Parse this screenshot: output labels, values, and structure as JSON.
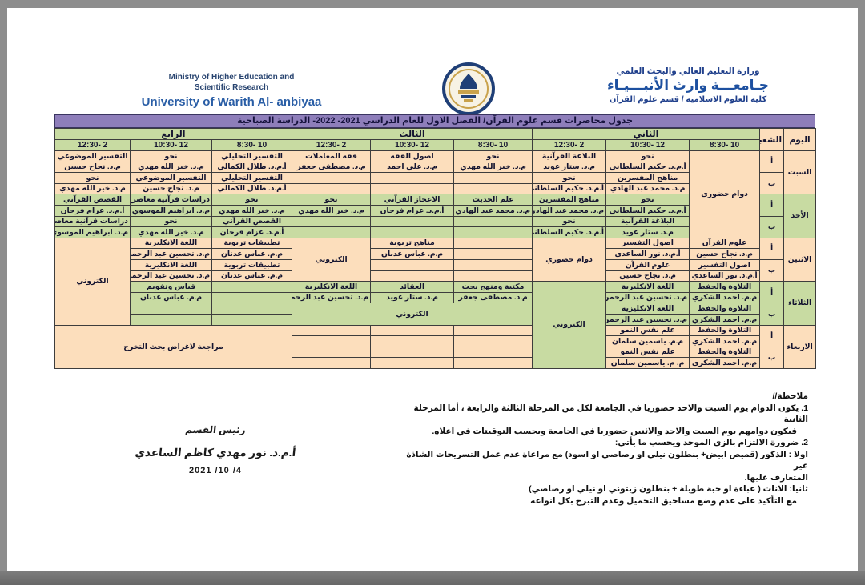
{
  "header": {
    "ministry_line1": "Ministry of Higher Education and",
    "ministry_line2": "Scientific Research",
    "university_en": "University of Warith Al- anbiyaa",
    "ministry_ar": "وزارة التعليم العالي والبحث العلمي",
    "university_ar": "جـامعـــة وارث الأنبـــيـاء",
    "college_ar": "كلية العلوم الاسلامية / قسم علوم القرآن",
    "logo_icon": "university-emblem"
  },
  "title_bar": "جدول محاضرات قسم علوم القرآن/ الفصل الاول للعام الدراسي 2021- 2022- الدراسة الصباحية",
  "colors": {
    "title_purple": "#8e7eba",
    "row_peach": "#fcdebc",
    "row_green": "#c8dba2",
    "border": "#3d3d3d",
    "header_blue_en": "#2a5ea6",
    "header_navy": "#20408c"
  },
  "table": {
    "headers": {
      "day": "اليوم",
      "section": "الشعبة",
      "stages": [
        "الثاني",
        "الثالث",
        "الرابع"
      ],
      "times": [
        "10 -8:30",
        "12 -10:30",
        "2 -12:30"
      ]
    },
    "body_rows": [
      {
        "tone": "p",
        "cells": [
          {
            "t": "السبت",
            "k": "day",
            "rs": 4
          },
          {
            "t": "أ",
            "k": "sec",
            "rs": 2
          },
          {
            "t": "دوام حضوري",
            "k": "mrg",
            "rs": 8
          },
          {
            "t": "نحو",
            "k": "sub"
          },
          {
            "t": "البلاغة القرآنية",
            "k": "sub"
          },
          {
            "t": "نحو",
            "k": "sub"
          },
          {
            "t": "اصول الفقه",
            "k": "sub"
          },
          {
            "t": "فقه المعاملات",
            "k": "sub"
          },
          {
            "t": "التفسير التحليلي",
            "k": "sub"
          },
          {
            "t": "نحو",
            "k": "sub"
          },
          {
            "t": "التفسير الموضوعي",
            "k": "sub"
          }
        ]
      },
      {
        "tone": "p",
        "cells": [
          {
            "t": "أ.م.د. حكيم السلطاني",
            "k": "tch"
          },
          {
            "t": "م.د. ستار عويد",
            "k": "tch"
          },
          {
            "t": "م.د. خير الله مهدي",
            "k": "tch"
          },
          {
            "t": "م.د. علي احمد",
            "k": "tch"
          },
          {
            "t": "م.د. مصطفى جعفر",
            "k": "tch"
          },
          {
            "t": "أ.م.د. طلال الكمالي",
            "k": "tch"
          },
          {
            "t": "م.د. خير الله مهدي",
            "k": "tch"
          },
          {
            "t": "م.د. نجاح حسين",
            "k": "tch"
          }
        ]
      },
      {
        "tone": "p",
        "cells": [
          {
            "t": "ب",
            "k": "sec",
            "rs": 2
          },
          {
            "t": "مناهج المفسرين",
            "k": "sub"
          },
          {
            "t": "نحو",
            "k": "sub"
          },
          {
            "t": "",
            "k": "emp"
          },
          {
            "t": "",
            "k": "emp"
          },
          {
            "t": "",
            "k": "emp"
          },
          {
            "t": "التفسير التحليلي",
            "k": "sub"
          },
          {
            "t": "التفسير الموضوعي",
            "k": "sub"
          },
          {
            "t": "نحو",
            "k": "sub"
          }
        ]
      },
      {
        "tone": "p",
        "cells": [
          {
            "t": "م.د. محمد عبد الهادي",
            "k": "tch"
          },
          {
            "t": "أ.م.د. حكيم السلطاني",
            "k": "tch"
          },
          {
            "t": "",
            "k": "emp"
          },
          {
            "t": "",
            "k": "emp"
          },
          {
            "t": "",
            "k": "emp"
          },
          {
            "t": "أ.م.د. طلال الكمالي",
            "k": "tch"
          },
          {
            "t": "م.د. نجاح حسين",
            "k": "tch"
          },
          {
            "t": "م.د. خير الله مهدي",
            "k": "tch"
          }
        ]
      },
      {
        "tone": "g",
        "cells": [
          {
            "t": "الأحد",
            "k": "day",
            "rs": 4
          },
          {
            "t": "أ",
            "k": "sec",
            "rs": 2
          },
          {
            "t": "نحو",
            "k": "sub"
          },
          {
            "t": "مناهج المفسرين",
            "k": "sub"
          },
          {
            "t": "علم الحديث",
            "k": "sub"
          },
          {
            "t": "الاعجاز القرآني",
            "k": "sub"
          },
          {
            "t": "نحو",
            "k": "sub"
          },
          {
            "t": "نحو",
            "k": "sub"
          },
          {
            "t": "دراسات قرآنية معاصرة",
            "k": "sub"
          },
          {
            "t": "القصص القرآني",
            "k": "sub"
          }
        ]
      },
      {
        "tone": "g",
        "cells": [
          {
            "t": "أ.م.د. حكيم السلطاني",
            "k": "tch"
          },
          {
            "t": "م.د. محمد عبد الهادي",
            "k": "tch"
          },
          {
            "t": "م.د. محمد عبد الهادي",
            "k": "tch"
          },
          {
            "t": "أ.م.د. عزام فرحان",
            "k": "tch"
          },
          {
            "t": "م.د. خير الله مهدي",
            "k": "tch"
          },
          {
            "t": "م.د. خير الله مهدي",
            "k": "tch"
          },
          {
            "t": "م.د. ابراهيم الموسوي",
            "k": "tch"
          },
          {
            "t": "أ.م.د. عزام فرحان",
            "k": "tch"
          }
        ]
      },
      {
        "tone": "g",
        "cells": [
          {
            "t": "ب",
            "k": "sec",
            "rs": 2
          },
          {
            "t": "البلاغة القرآنية",
            "k": "sub"
          },
          {
            "t": "نحو",
            "k": "sub"
          },
          {
            "t": "",
            "k": "emp"
          },
          {
            "t": "",
            "k": "emp"
          },
          {
            "t": "",
            "k": "emp"
          },
          {
            "t": "القصص القرآني",
            "k": "sub"
          },
          {
            "t": "نحو",
            "k": "sub"
          },
          {
            "t": "دراسات قرآنية معاصرة",
            "k": "sub"
          }
        ]
      },
      {
        "tone": "g",
        "cells": [
          {
            "t": "م.د. ستار عويد",
            "k": "tch"
          },
          {
            "t": "أ.م.د. حكيم السلطاني",
            "k": "tch"
          },
          {
            "t": "",
            "k": "emp"
          },
          {
            "t": "",
            "k": "emp"
          },
          {
            "t": "",
            "k": "emp"
          },
          {
            "t": "أ.م.د. عزام فرحان",
            "k": "tch"
          },
          {
            "t": "م.د. خير الله مهدي",
            "k": "tch"
          },
          {
            "t": "م.د. ابراهيم الموسوي",
            "k": "tch"
          }
        ]
      },
      {
        "tone": "p",
        "cells": [
          {
            "t": "الاثنين",
            "k": "day",
            "rs": 4
          },
          {
            "t": "أ",
            "k": "sec",
            "rs": 2
          },
          {
            "t": "علوم القرآن",
            "k": "sub"
          },
          {
            "t": "اصول التفسير",
            "k": "sub"
          },
          {
            "t": "دوام حضوري",
            "k": "mrg",
            "rs": 4
          },
          {
            "t": "",
            "k": "emp"
          },
          {
            "t": "مناهج تربوية",
            "k": "sub"
          },
          {
            "t": "الكتروني",
            "k": "mrg",
            "rs": 4
          },
          {
            "t": "تطبيقات تربوية",
            "k": "sub"
          },
          {
            "t": "اللغة الانكليزية",
            "k": "sub"
          },
          {
            "t": "الكتروني",
            "k": "mrg",
            "rs": 8
          }
        ]
      },
      {
        "tone": "p",
        "cells": [
          {
            "t": "م.د. نجاح حسين",
            "k": "tch"
          },
          {
            "t": "أ.م.د. نور الساعدي",
            "k": "tch"
          },
          {
            "t": "",
            "k": "emp"
          },
          {
            "t": "م.م. عباس عدنان",
            "k": "tch"
          },
          {
            "t": "م.م. عباس عدنان",
            "k": "tch"
          },
          {
            "t": "م.د. تحسين عبد الرحمن",
            "k": "tch"
          }
        ]
      },
      {
        "tone": "p",
        "cells": [
          {
            "t": "ب",
            "k": "sec",
            "rs": 2
          },
          {
            "t": "اصول التفسير",
            "k": "sub"
          },
          {
            "t": "علوم القرآن",
            "k": "sub"
          },
          {
            "t": "",
            "k": "emp"
          },
          {
            "t": "",
            "k": "emp"
          },
          {
            "t": "تطبيقات تربوية",
            "k": "sub"
          },
          {
            "t": "اللغة الانكليزية",
            "k": "sub"
          }
        ]
      },
      {
        "tone": "p",
        "cells": [
          {
            "t": "أ.م.د. نور الساعدي",
            "k": "tch"
          },
          {
            "t": "م.د. نجاح حسين",
            "k": "tch"
          },
          {
            "t": "",
            "k": "emp"
          },
          {
            "t": "",
            "k": "emp"
          },
          {
            "t": "م.م. عباس عدنان",
            "k": "tch"
          },
          {
            "t": "م.د. تحسين عبد الرحمن",
            "k": "tch"
          }
        ]
      },
      {
        "tone": "g",
        "cells": [
          {
            "t": "الثلاثاء",
            "k": "day",
            "rs": 4
          },
          {
            "t": "أ",
            "k": "sec",
            "rs": 2
          },
          {
            "t": "التلاوة والحفظ",
            "k": "sub"
          },
          {
            "t": "اللغة الانكليزية",
            "k": "sub"
          },
          {
            "t": "الكتروني",
            "k": "mrg",
            "rs": 8
          },
          {
            "t": "مكتبة ومنهج بحث",
            "k": "sub"
          },
          {
            "t": "العقائد",
            "k": "sub"
          },
          {
            "t": "اللغة الانكليزية",
            "k": "sub"
          },
          {
            "t": "",
            "k": "emp"
          },
          {
            "t": "قياس وتقويم",
            "k": "sub"
          }
        ]
      },
      {
        "tone": "g",
        "cells": [
          {
            "t": "م.م. احمد الشكري",
            "k": "tch"
          },
          {
            "t": "م.د. تحسين عبد الرحمن",
            "k": "tch"
          },
          {
            "t": "م.د. مصطفى جعفر",
            "k": "tch"
          },
          {
            "t": "م.د. ستار عويد",
            "k": "tch"
          },
          {
            "t": "م.د. تحسين عبد الرحمن",
            "k": "tch"
          },
          {
            "t": "",
            "k": "emp"
          },
          {
            "t": "م.م. عباس عدنان",
            "k": "tch"
          }
        ]
      },
      {
        "tone": "g",
        "cells": [
          {
            "t": "ب",
            "k": "sec",
            "rs": 2
          },
          {
            "t": "التلاوة والحفظ",
            "k": "sub"
          },
          {
            "t": "اللغة الانكليزية",
            "k": "sub"
          },
          {
            "t": "الكتروني",
            "k": "mrg",
            "rs": 2,
            "cs": 3
          },
          {
            "t": "",
            "k": "emp"
          },
          {
            "t": "",
            "k": "emp"
          }
        ]
      },
      {
        "tone": "g",
        "cells": [
          {
            "t": "م.م. احمد الشكري",
            "k": "tch"
          },
          {
            "t": "م.د. تحسين عبد الرحمن",
            "k": "tch"
          },
          {
            "t": "",
            "k": "emp"
          },
          {
            "t": "",
            "k": "emp"
          }
        ]
      },
      {
        "tone": "p",
        "cells": [
          {
            "t": "الاربعاء",
            "k": "day",
            "rs": 4
          },
          {
            "t": "أ",
            "k": "sec",
            "rs": 2
          },
          {
            "t": "التلاوة والحفظ",
            "k": "sub"
          },
          {
            "t": "علم نفس النمو",
            "k": "sub"
          },
          {
            "t": "",
            "k": "emp"
          },
          {
            "t": "",
            "k": "emp"
          },
          {
            "t": "",
            "k": "emp"
          },
          {
            "t": "مراجعة لاغراض بحث التخرج",
            "k": "mrg",
            "rs": 4,
            "cs": 3
          }
        ]
      },
      {
        "tone": "p",
        "cells": [
          {
            "t": "م.م. احمد الشكري",
            "k": "tch"
          },
          {
            "t": "م.م. ياسمين سلمان",
            "k": "tch"
          },
          {
            "t": "",
            "k": "emp"
          },
          {
            "t": "",
            "k": "emp"
          },
          {
            "t": "",
            "k": "emp"
          }
        ]
      },
      {
        "tone": "p",
        "cells": [
          {
            "t": "ب",
            "k": "sec",
            "rs": 2
          },
          {
            "t": "التلاوة والحفظ",
            "k": "sub"
          },
          {
            "t": "علم نفس النمو",
            "k": "sub"
          },
          {
            "t": "",
            "k": "emp"
          },
          {
            "t": "",
            "k": "emp"
          },
          {
            "t": "",
            "k": "emp"
          }
        ]
      },
      {
        "tone": "p",
        "cells": [
          {
            "t": "م.م. احمد الشكري",
            "k": "tch"
          },
          {
            "t": "م. م. ياسمين سلمان",
            "k": "tch"
          },
          {
            "t": "",
            "k": "emp"
          },
          {
            "t": "",
            "k": "emp"
          },
          {
            "t": "",
            "k": "emp"
          }
        ]
      }
    ]
  },
  "notes": {
    "lines": [
      "ملاحظة//",
      "1. يكون الدوام يوم السبت والاحد  حضوريا في الجامعة لكل من المرحلة الثالثة والرابعة ، أما المرحلة الثانية",
      "فيكون دوامهم يوم السبت والاحد والاثنين حضوريا في الجامعة ويحسب التوقيتات في اعلاه.",
      "2. ضرورة الالتزام بالزي الموحد ويحسب ما يأتي:",
      "اولا : الذكور (قميص ابيض+ بنطلون نيلي او رصاصي او اسود) مع مراعاة عدم عمل التسريحات الشاذة غير",
      "المتعارف عليها.",
      "ثانيا: الاناث ( عباءة او جبة طويلة + بنطلون زيتوني او نيلي او رصاصي)",
      "مع التأكيد على عدم وضع مساحيق التجميل وعدم التبرج بكل انواعه"
    ]
  },
  "signature": {
    "title": "رئيس القسم",
    "name": "أ.م.د. نور مهدي كاظم الساعدي",
    "date": "2021 /10 /4"
  }
}
